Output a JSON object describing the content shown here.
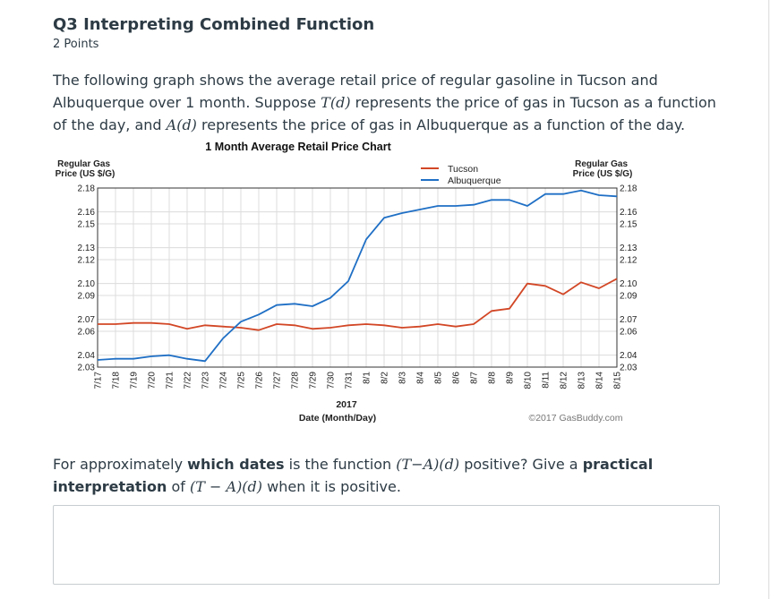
{
  "question": {
    "title": "Q3 Interpreting Combined Function",
    "points": "2 Points",
    "text_1": "The following graph shows the average retail price of regular gasoline in Tucson and Albuquerque over 1 month. Suppose ",
    "T_fn": "T(d)",
    "text_2": " represents the price of gas in Tucson as a function of the day, and ",
    "A_fn": "A(d)",
    "text_3": " represents the price of gas in Albuquerque as a function of the day.",
    "prompt_1": "For approximately ",
    "prompt_bold_1": "which dates",
    "prompt_2": " is the function ",
    "prompt_fn_1": "(T−A)(d)",
    "prompt_3": " positive? Give a ",
    "prompt_bold_2": "practical interpretation",
    "prompt_4": " of ",
    "prompt_fn_2": "(T − A)(d)",
    "prompt_5": " when it is positive.",
    "answer_value": ""
  },
  "colors": {
    "tucson": "#d24726",
    "albuquerque": "#1f6fc5",
    "grid": "#dcdcdc",
    "axis": "#333333"
  },
  "chart_data": {
    "type": "line",
    "title": "1 Month Average Retail Price Chart",
    "ylabel_left": "Regular Gas\nPrice (US $/G)",
    "ylabel_right": "Regular Gas\nPrice (US $/G)",
    "xlabel_year": "2017",
    "xlabel": "Date (Month/Day)",
    "credit": "©2017 GasBuddy.com",
    "ylim": [
      2.03,
      2.18
    ],
    "yticks": [
      2.18,
      2.16,
      2.15,
      2.13,
      2.12,
      2.1,
      2.09,
      2.07,
      2.06,
      2.04,
      2.03
    ],
    "grid": true,
    "legend_position": "top-right",
    "categories": [
      "7/17",
      "7/18",
      "7/19",
      "7/20",
      "7/21",
      "7/22",
      "7/23",
      "7/24",
      "7/25",
      "7/26",
      "7/27",
      "7/28",
      "7/29",
      "7/30",
      "7/31",
      "8/1",
      "8/2",
      "8/3",
      "8/4",
      "8/5",
      "8/6",
      "8/7",
      "8/8",
      "8/9",
      "8/10",
      "8/11",
      "8/12",
      "8/13",
      "8/14",
      "8/15"
    ],
    "series": [
      {
        "name": "Tucson",
        "color": "#d24726",
        "values": [
          2.066,
          2.066,
          2.067,
          2.067,
          2.066,
          2.062,
          2.065,
          2.064,
          2.063,
          2.061,
          2.066,
          2.065,
          2.062,
          2.063,
          2.065,
          2.066,
          2.065,
          2.063,
          2.064,
          2.066,
          2.064,
          2.066,
          2.077,
          2.079,
          2.1,
          2.098,
          2.091,
          2.101,
          2.096,
          2.104
        ]
      },
      {
        "name": "Albuquerque",
        "color": "#1f6fc5",
        "values": [
          2.036,
          2.037,
          2.037,
          2.039,
          2.04,
          2.037,
          2.035,
          2.054,
          2.068,
          2.074,
          2.082,
          2.083,
          2.081,
          2.088,
          2.102,
          2.137,
          2.155,
          2.159,
          2.162,
          2.165,
          2.165,
          2.166,
          2.17,
          2.17,
          2.165,
          2.175,
          2.175,
          2.178,
          2.174,
          2.173
        ]
      }
    ]
  }
}
